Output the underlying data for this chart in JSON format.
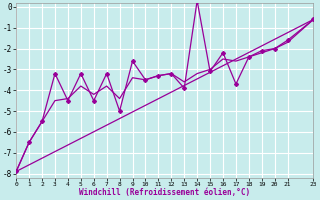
{
  "background_color": "#c8ecec",
  "grid_color": "#ffffff",
  "line_color": "#990099",
  "xlabel": "Windchill (Refroidissement éolien,°C)",
  "xlim": [
    0,
    23
  ],
  "ylim": [
    -8.2,
    0.2
  ],
  "xtick_pos": [
    0,
    1,
    2,
    3,
    4,
    5,
    6,
    7,
    8,
    9,
    10,
    11,
    12,
    13,
    14,
    15,
    16,
    17,
    18,
    19,
    20,
    21,
    23
  ],
  "xtick_labels": [
    "0",
    "1",
    "2",
    "3",
    "4",
    "5",
    "6",
    "7",
    "8",
    "9",
    "10",
    "11",
    "12",
    "13",
    "14",
    "15",
    "16",
    "17",
    "18",
    "19",
    "20",
    "21",
    "23"
  ],
  "ytick_pos": [
    0,
    -1,
    -2,
    -3,
    -4,
    -5,
    -6,
    -7,
    -8
  ],
  "ytick_labels": [
    "0",
    "-1",
    "-2",
    "-3",
    "-4",
    "-5",
    "-6",
    "-7",
    "-8"
  ],
  "zigzag_x": [
    0,
    1,
    2,
    3,
    4,
    5,
    6,
    7,
    8,
    9,
    10,
    11,
    12,
    13,
    14,
    15,
    16,
    17,
    18,
    19,
    20,
    21,
    23
  ],
  "zigzag_y": [
    -7.9,
    -6.5,
    -5.5,
    -3.2,
    -4.5,
    -3.2,
    -4.5,
    -3.2,
    -5.0,
    -2.6,
    -3.5,
    -3.3,
    -3.2,
    -3.9,
    0.3,
    -3.1,
    -2.2,
    -3.7,
    -2.4,
    -2.1,
    -2.0,
    -1.6,
    -0.6
  ],
  "trend_x": [
    0,
    23
  ],
  "trend_y": [
    -7.9,
    -0.6
  ],
  "smooth_x": [
    0,
    1,
    2,
    3,
    4,
    5,
    6,
    7,
    8,
    9,
    10,
    11,
    12,
    13,
    14,
    15,
    16,
    17,
    18,
    19,
    20,
    21,
    23
  ],
  "smooth_y": [
    -7.9,
    -6.5,
    -5.5,
    -4.5,
    -4.4,
    -3.8,
    -4.2,
    -3.8,
    -4.4,
    -3.4,
    -3.5,
    -3.3,
    -3.2,
    -3.6,
    -3.2,
    -3.0,
    -2.5,
    -2.6,
    -2.4,
    -2.2,
    -2.0,
    -1.7,
    -0.6
  ]
}
